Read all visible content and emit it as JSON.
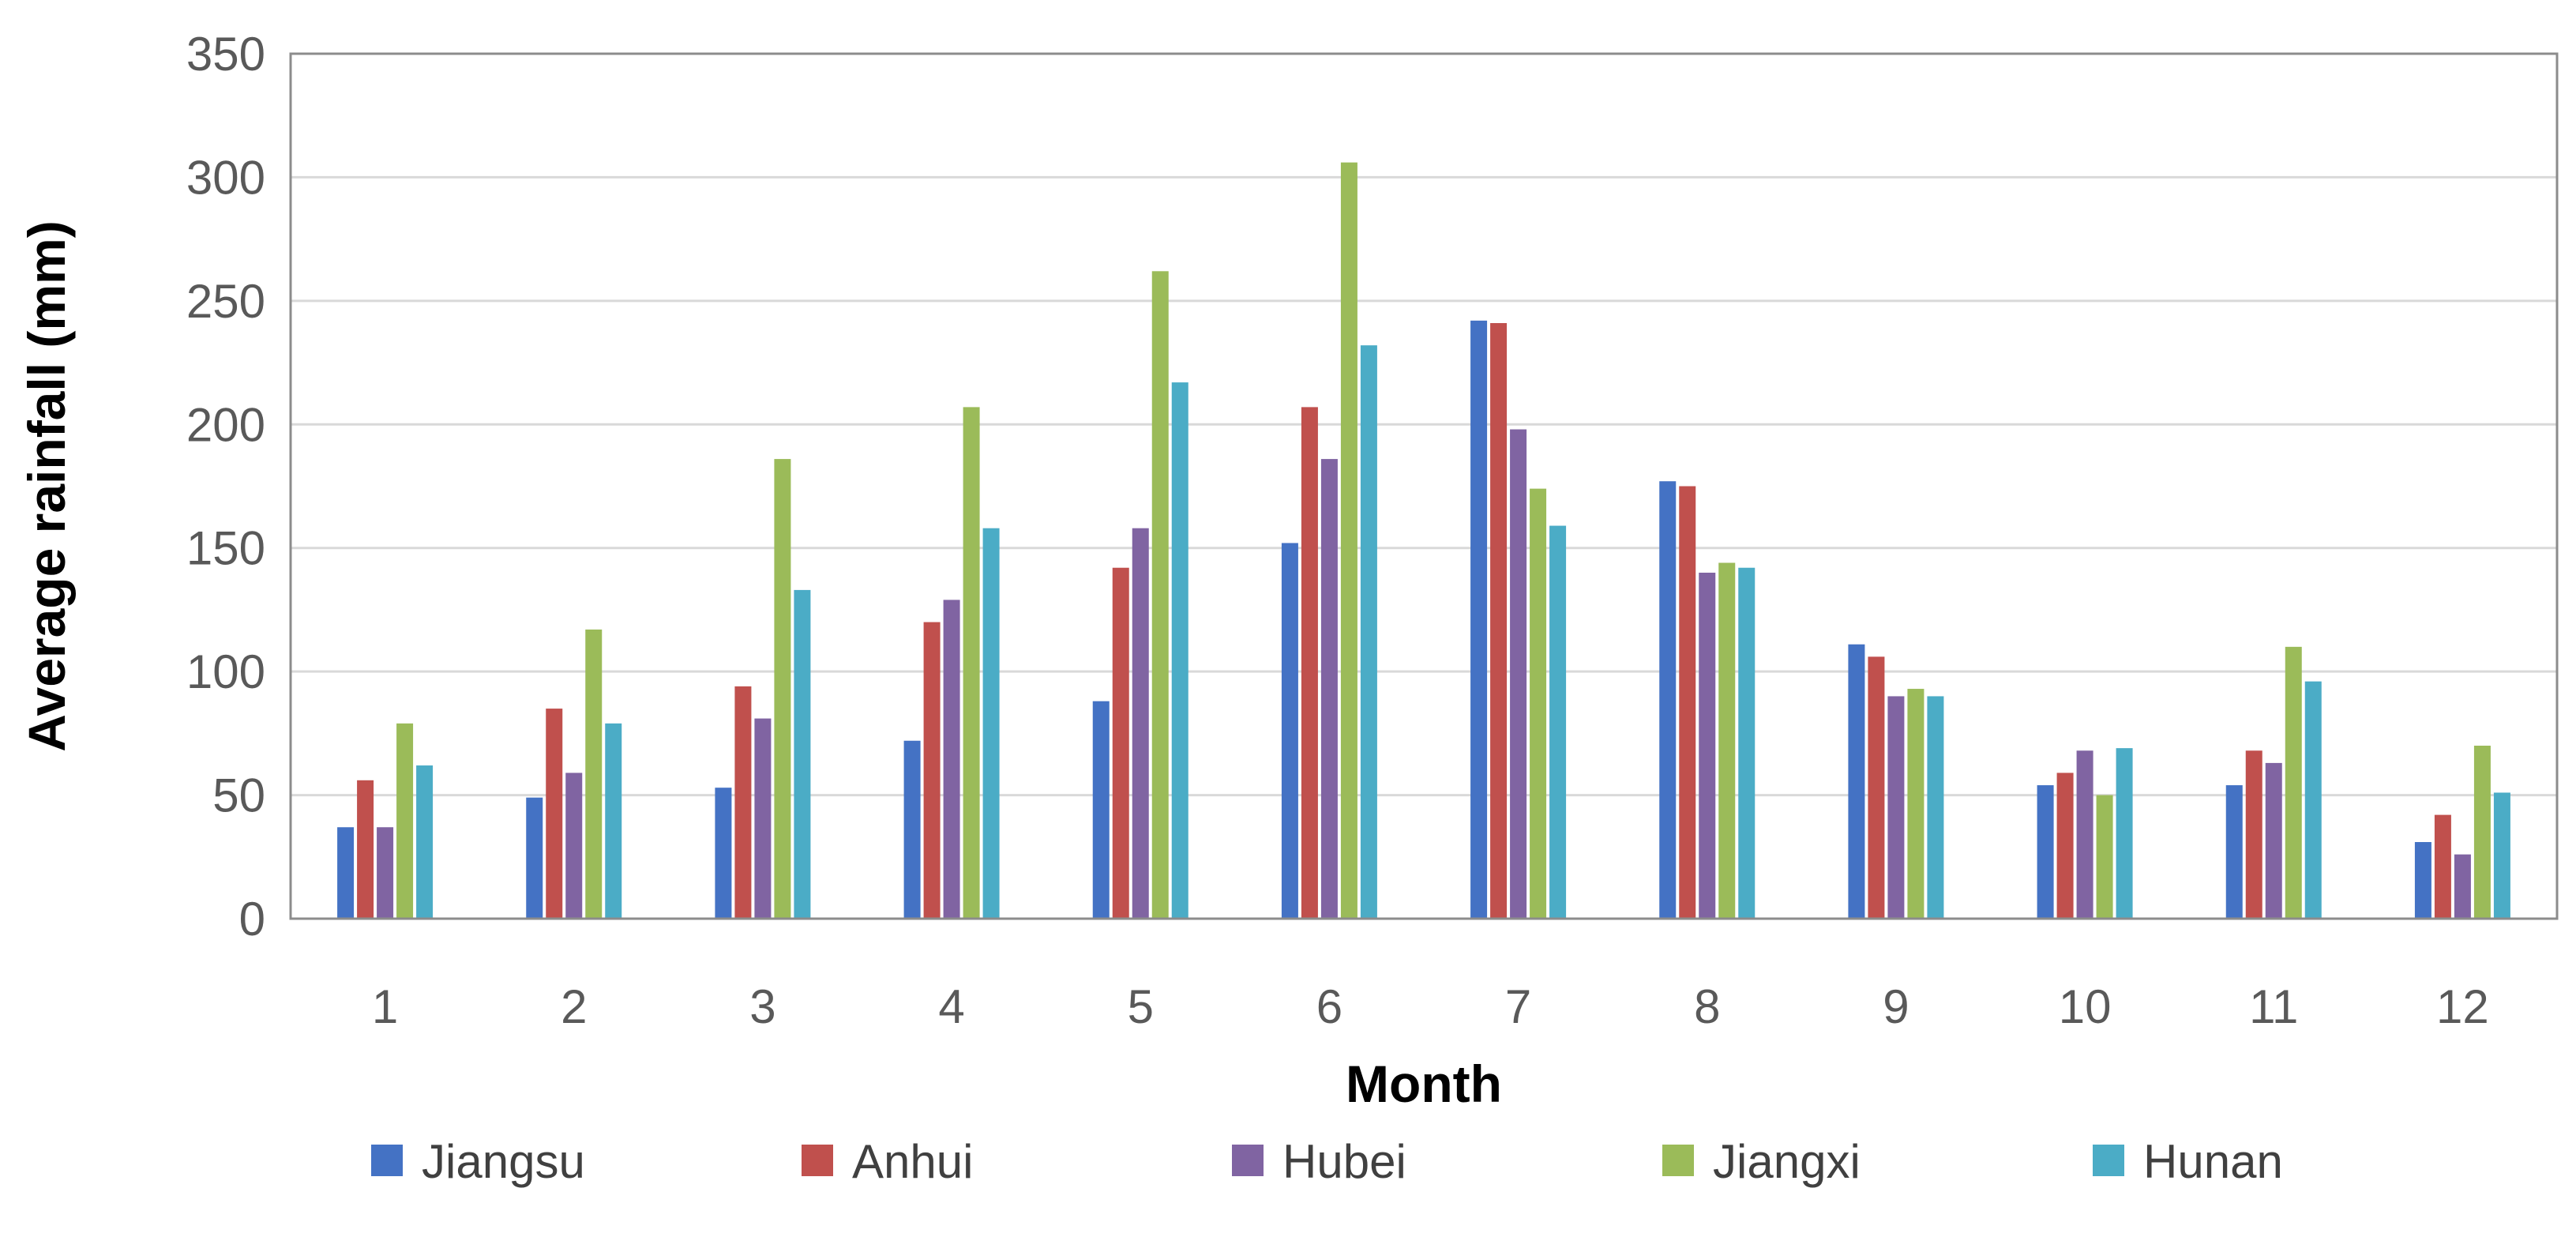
{
  "chart_data": {
    "type": "bar",
    "title": "",
    "xlabel": "Month",
    "ylabel": "Average rainfall (mm)",
    "ylim": [
      0,
      350
    ],
    "yticks": [
      0,
      50,
      100,
      150,
      200,
      250,
      300,
      350
    ],
    "grid": "horizontal",
    "legend_position": "bottom",
    "categories": [
      "1",
      "2",
      "3",
      "4",
      "5",
      "6",
      "7",
      "8",
      "9",
      "10",
      "11",
      "12"
    ],
    "series": [
      {
        "name": "Jiangsu",
        "color": "#4472C4",
        "values": [
          37,
          49,
          53,
          72,
          88,
          152,
          242,
          177,
          111,
          54,
          54,
          31
        ]
      },
      {
        "name": "Anhui",
        "color": "#C0504D",
        "values": [
          56,
          85,
          94,
          120,
          142,
          207,
          241,
          175,
          106,
          59,
          68,
          42
        ]
      },
      {
        "name": "Hubei",
        "color": "#8064A2",
        "values": [
          37,
          59,
          81,
          129,
          158,
          186,
          198,
          140,
          90,
          68,
          63,
          26
        ]
      },
      {
        "name": "Jiangxi",
        "color": "#9BBB59",
        "values": [
          79,
          117,
          186,
          207,
          262,
          306,
          174,
          144,
          93,
          50,
          110,
          70
        ]
      },
      {
        "name": "Hunan",
        "color": "#4BACC6",
        "values": [
          62,
          79,
          133,
          158,
          217,
          232,
          159,
          142,
          90,
          69,
          96,
          51
        ]
      }
    ]
  }
}
